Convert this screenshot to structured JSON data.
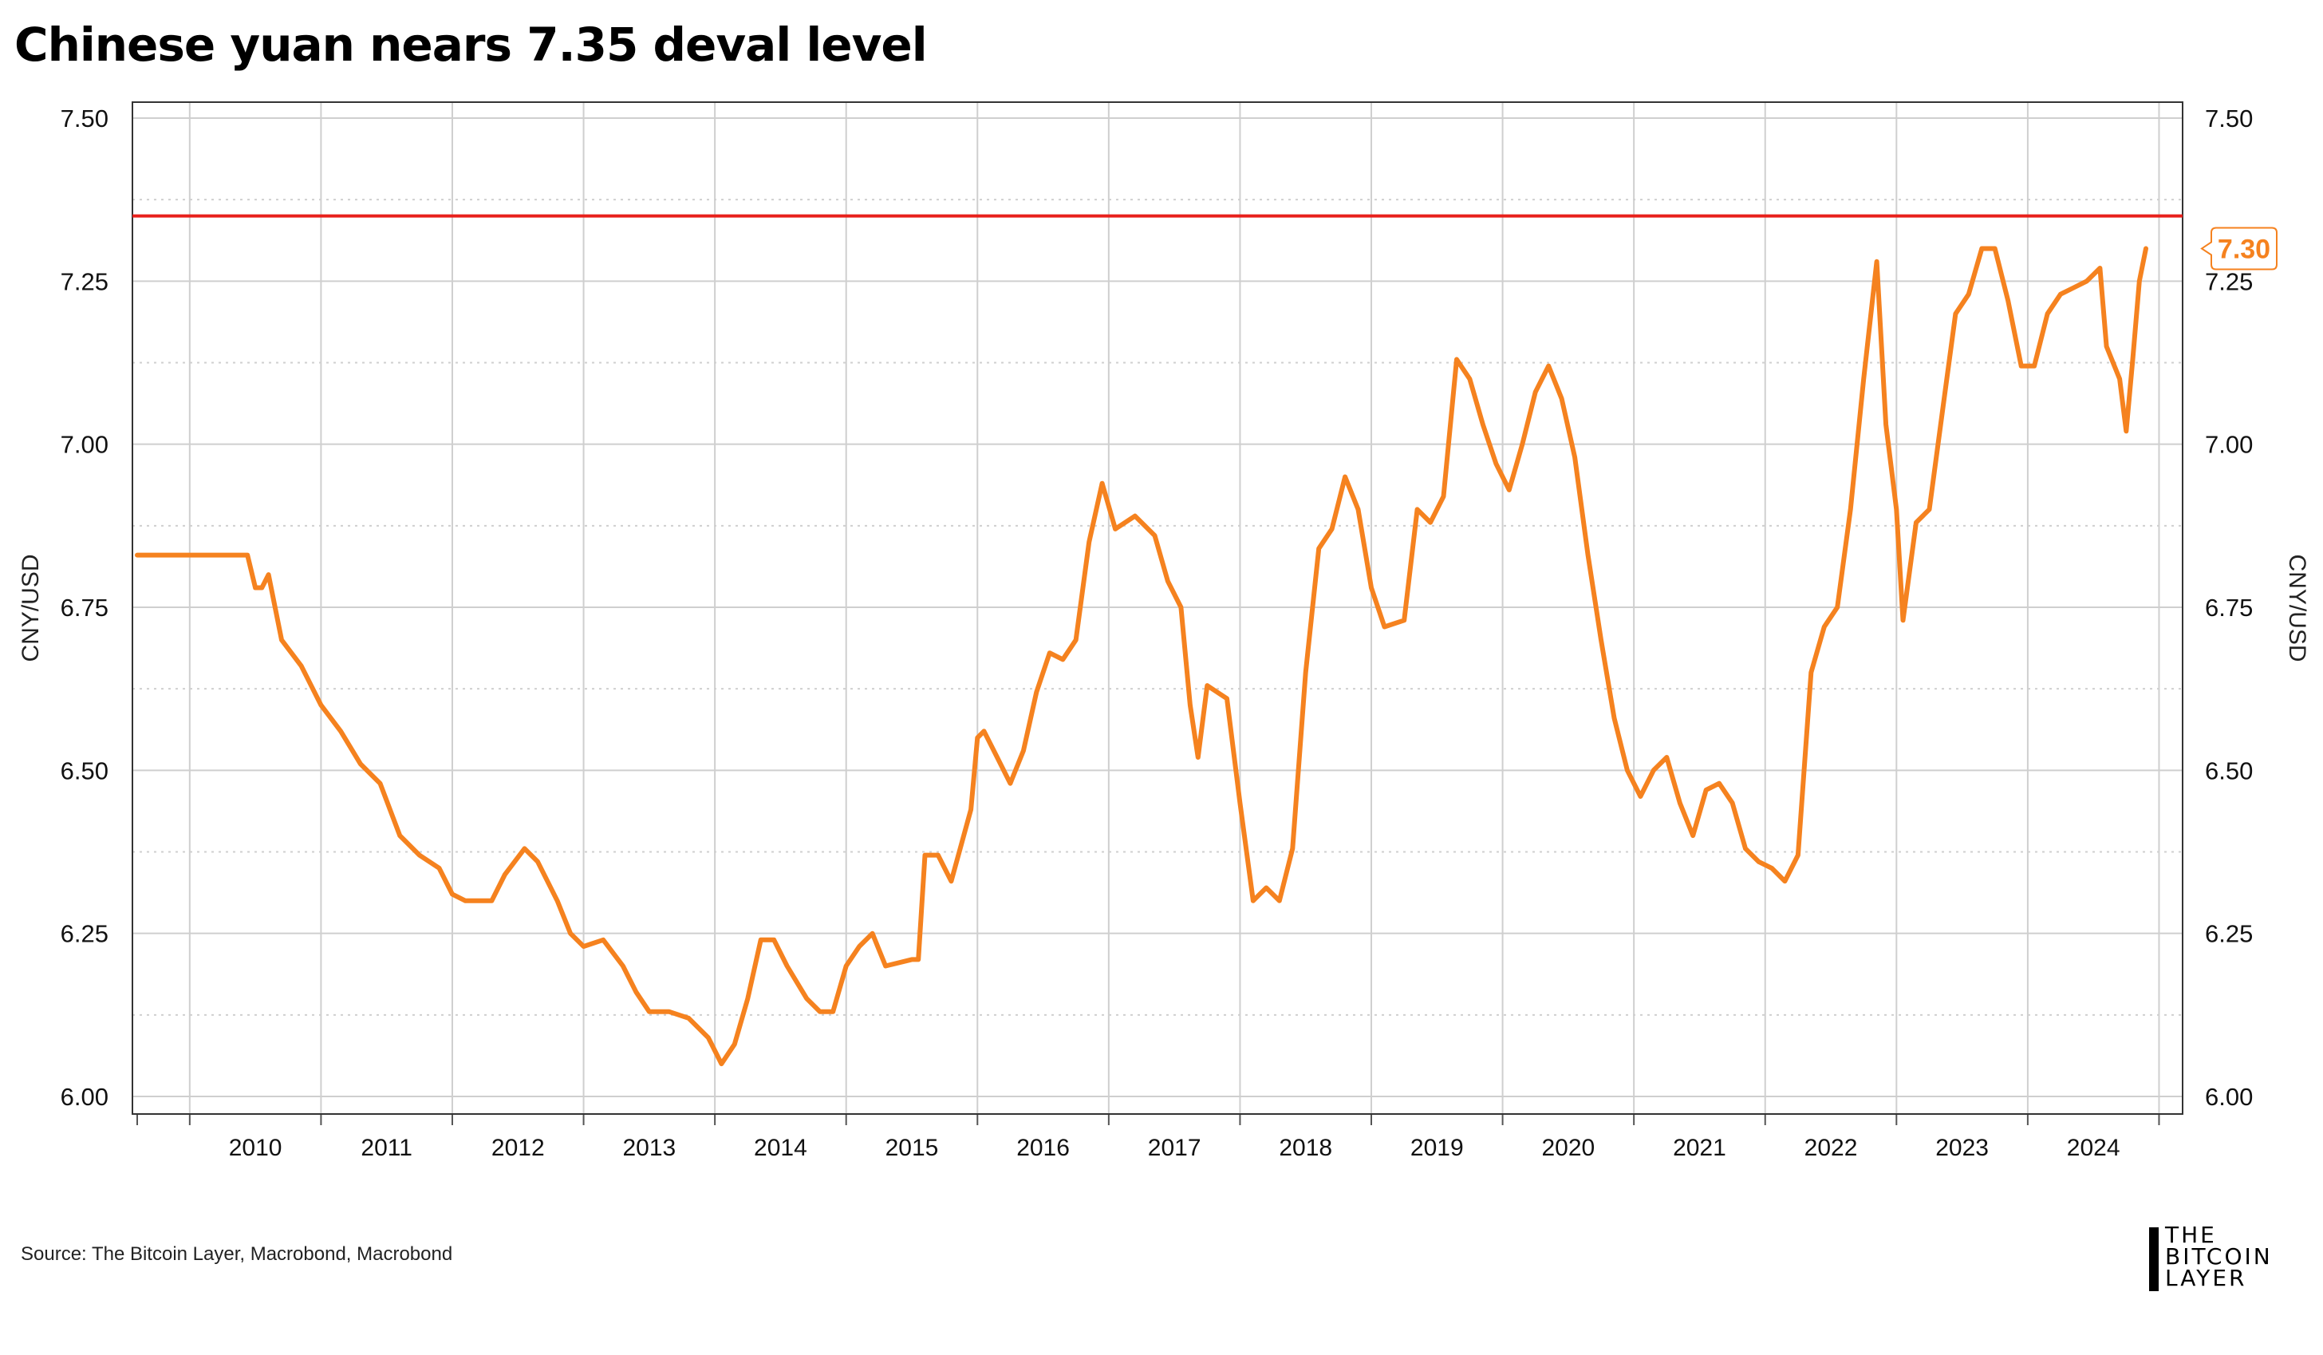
{
  "title": "Chinese yuan nears 7.35 deval level",
  "source": "Source: The Bitcoin Layer, Macrobond, Macrobond",
  "logo": {
    "lines": [
      "THE",
      "BITCOIN",
      "LAYER"
    ],
    "mark": "vertical-bar-logo"
  },
  "colors": {
    "series": "#F5821F",
    "reference": "#E8201B",
    "grid": "#cfcfcf",
    "axis": "#333333",
    "callout_text": "#F5821F"
  },
  "chart_data": {
    "type": "line",
    "title": "Chinese yuan nears 7.35 deval level",
    "ylabel_left": "CNY/USD",
    "ylabel_right": "CNY/USD",
    "ylim": [
      6.0,
      7.5
    ],
    "y_ticks": [
      "6.00",
      "6.25",
      "6.50",
      "6.75",
      "7.00",
      "7.25",
      "7.50"
    ],
    "x_ticks": [
      "2010",
      "2011",
      "2012",
      "2013",
      "2014",
      "2015",
      "2016",
      "2017",
      "2018",
      "2019",
      "2020",
      "2021",
      "2022",
      "2023",
      "2024"
    ],
    "xlim": [
      2009.6,
      2024.9
    ],
    "grid": "solid major, dotted minor",
    "reference_line": {
      "value": 7.35,
      "color": "#E8201B"
    },
    "last_value_label": "7.30",
    "series": [
      {
        "color": "#F5821F",
        "points": [
          [
            2009.6,
            6.83
          ],
          [
            2010.0,
            6.83
          ],
          [
            2010.44,
            6.83
          ],
          [
            2010.5,
            6.78
          ],
          [
            2010.55,
            6.78
          ],
          [
            2010.6,
            6.8
          ],
          [
            2010.7,
            6.7
          ],
          [
            2010.85,
            6.66
          ],
          [
            2011.0,
            6.6
          ],
          [
            2011.15,
            6.56
          ],
          [
            2011.3,
            6.51
          ],
          [
            2011.45,
            6.48
          ],
          [
            2011.6,
            6.4
          ],
          [
            2011.75,
            6.37
          ],
          [
            2011.9,
            6.35
          ],
          [
            2012.0,
            6.31
          ],
          [
            2012.1,
            6.3
          ],
          [
            2012.3,
            6.3
          ],
          [
            2012.4,
            6.34
          ],
          [
            2012.55,
            6.38
          ],
          [
            2012.65,
            6.36
          ],
          [
            2012.8,
            6.3
          ],
          [
            2012.9,
            6.25
          ],
          [
            2013.0,
            6.23
          ],
          [
            2013.15,
            6.24
          ],
          [
            2013.3,
            6.2
          ],
          [
            2013.4,
            6.16
          ],
          [
            2013.5,
            6.13
          ],
          [
            2013.65,
            6.13
          ],
          [
            2013.8,
            6.12
          ],
          [
            2013.95,
            6.09
          ],
          [
            2014.05,
            6.05
          ],
          [
            2014.15,
            6.08
          ],
          [
            2014.25,
            6.15
          ],
          [
            2014.35,
            6.24
          ],
          [
            2014.45,
            6.24
          ],
          [
            2014.55,
            6.2
          ],
          [
            2014.7,
            6.15
          ],
          [
            2014.8,
            6.13
          ],
          [
            2014.9,
            6.13
          ],
          [
            2015.0,
            6.2
          ],
          [
            2015.1,
            6.23
          ],
          [
            2015.2,
            6.25
          ],
          [
            2015.3,
            6.2
          ],
          [
            2015.5,
            6.21
          ],
          [
            2015.55,
            6.21
          ],
          [
            2015.6,
            6.37
          ],
          [
            2015.7,
            6.37
          ],
          [
            2015.8,
            6.33
          ],
          [
            2015.95,
            6.44
          ],
          [
            2016.0,
            6.55
          ],
          [
            2016.05,
            6.56
          ],
          [
            2016.15,
            6.52
          ],
          [
            2016.25,
            6.48
          ],
          [
            2016.35,
            6.53
          ],
          [
            2016.45,
            6.62
          ],
          [
            2016.55,
            6.68
          ],
          [
            2016.65,
            6.67
          ],
          [
            2016.75,
            6.7
          ],
          [
            2016.85,
            6.85
          ],
          [
            2016.95,
            6.94
          ],
          [
            2017.05,
            6.87
          ],
          [
            2017.2,
            6.89
          ],
          [
            2017.35,
            6.86
          ],
          [
            2017.45,
            6.79
          ],
          [
            2017.55,
            6.75
          ],
          [
            2017.62,
            6.6
          ],
          [
            2017.68,
            6.52
          ],
          [
            2017.75,
            6.63
          ],
          [
            2017.9,
            6.61
          ],
          [
            2018.0,
            6.45
          ],
          [
            2018.1,
            6.3
          ],
          [
            2018.2,
            6.32
          ],
          [
            2018.3,
            6.3
          ],
          [
            2018.4,
            6.38
          ],
          [
            2018.5,
            6.65
          ],
          [
            2018.6,
            6.84
          ],
          [
            2018.7,
            6.87
          ],
          [
            2018.8,
            6.95
          ],
          [
            2018.9,
            6.9
          ],
          [
            2019.0,
            6.78
          ],
          [
            2019.1,
            6.72
          ],
          [
            2019.25,
            6.73
          ],
          [
            2019.35,
            6.9
          ],
          [
            2019.45,
            6.88
          ],
          [
            2019.55,
            6.92
          ],
          [
            2019.65,
            7.13
          ],
          [
            2019.75,
            7.1
          ],
          [
            2019.85,
            7.03
          ],
          [
            2019.95,
            6.97
          ],
          [
            2020.05,
            6.93
          ],
          [
            2020.15,
            7.0
          ],
          [
            2020.25,
            7.08
          ],
          [
            2020.35,
            7.12
          ],
          [
            2020.45,
            7.07
          ],
          [
            2020.55,
            6.98
          ],
          [
            2020.65,
            6.83
          ],
          [
            2020.75,
            6.7
          ],
          [
            2020.85,
            6.58
          ],
          [
            2020.95,
            6.5
          ],
          [
            2021.05,
            6.46
          ],
          [
            2021.15,
            6.5
          ],
          [
            2021.25,
            6.52
          ],
          [
            2021.35,
            6.45
          ],
          [
            2021.45,
            6.4
          ],
          [
            2021.55,
            6.47
          ],
          [
            2021.65,
            6.48
          ],
          [
            2021.75,
            6.45
          ],
          [
            2021.85,
            6.38
          ],
          [
            2021.95,
            6.36
          ],
          [
            2022.05,
            6.35
          ],
          [
            2022.15,
            6.33
          ],
          [
            2022.25,
            6.37
          ],
          [
            2022.35,
            6.65
          ],
          [
            2022.45,
            6.72
          ],
          [
            2022.55,
            6.75
          ],
          [
            2022.65,
            6.9
          ],
          [
            2022.75,
            7.1
          ],
          [
            2022.85,
            7.28
          ],
          [
            2022.92,
            7.03
          ],
          [
            2023.0,
            6.9
          ],
          [
            2023.05,
            6.73
          ],
          [
            2023.15,
            6.88
          ],
          [
            2023.25,
            6.9
          ],
          [
            2023.35,
            7.05
          ],
          [
            2023.45,
            7.2
          ],
          [
            2023.55,
            7.23
          ],
          [
            2023.65,
            7.3
          ],
          [
            2023.75,
            7.3
          ],
          [
            2023.85,
            7.22
          ],
          [
            2023.95,
            7.12
          ],
          [
            2024.05,
            7.12
          ],
          [
            2024.15,
            7.2
          ],
          [
            2024.25,
            7.23
          ],
          [
            2024.35,
            7.24
          ],
          [
            2024.45,
            7.25
          ],
          [
            2024.55,
            7.27
          ],
          [
            2024.6,
            7.15
          ],
          [
            2024.7,
            7.1
          ],
          [
            2024.75,
            7.02
          ],
          [
            2024.8,
            7.13
          ],
          [
            2024.85,
            7.25
          ],
          [
            2024.9,
            7.3
          ]
        ]
      }
    ]
  }
}
